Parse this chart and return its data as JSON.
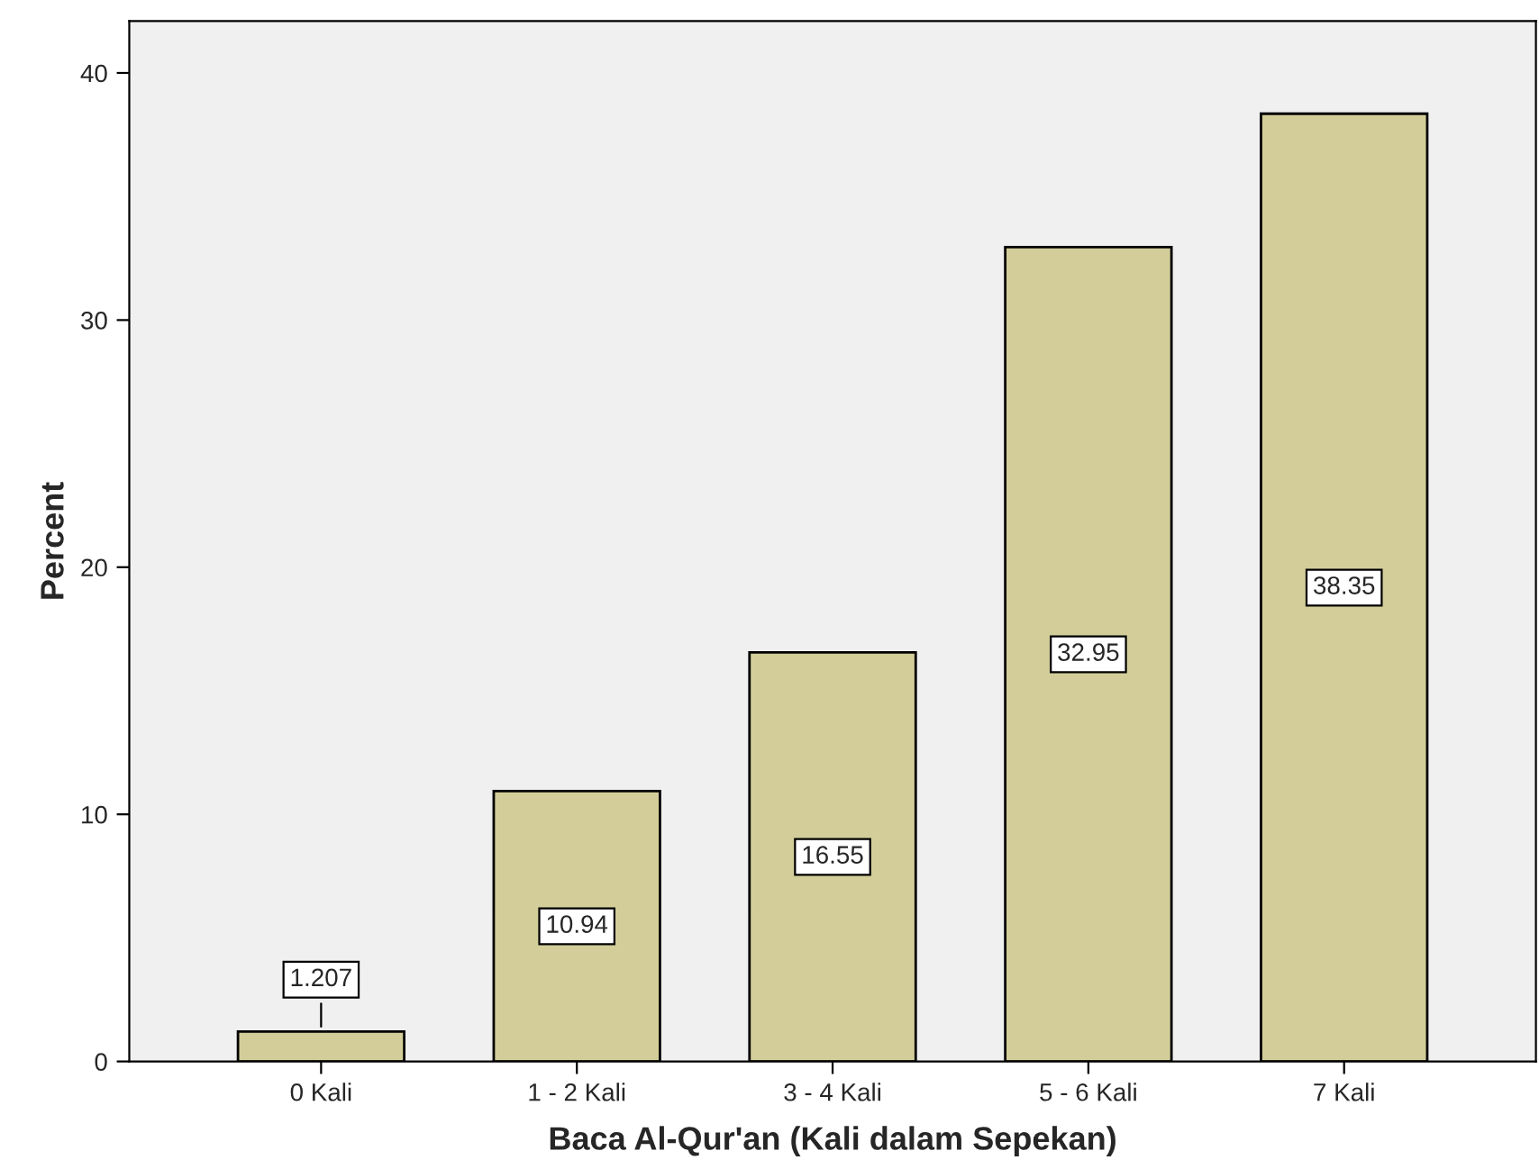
{
  "chart_data": {
    "type": "bar",
    "xlabel": "Baca Al-Qur'an (Kali dalam Sepekan)",
    "ylabel": "Percent",
    "categories": [
      "0 Kali",
      "1 - 2 Kali",
      "3 - 4 Kali",
      "5 - 6 Kali",
      "7 Kali"
    ],
    "values": [
      1.207,
      10.94,
      16.55,
      32.95,
      38.35
    ],
    "color": "#d3ce99",
    "ylim": [
      0,
      42.1
    ],
    "yticks": [
      0,
      10,
      20,
      30,
      40
    ],
    "grid": false,
    "data_labels": true
  }
}
